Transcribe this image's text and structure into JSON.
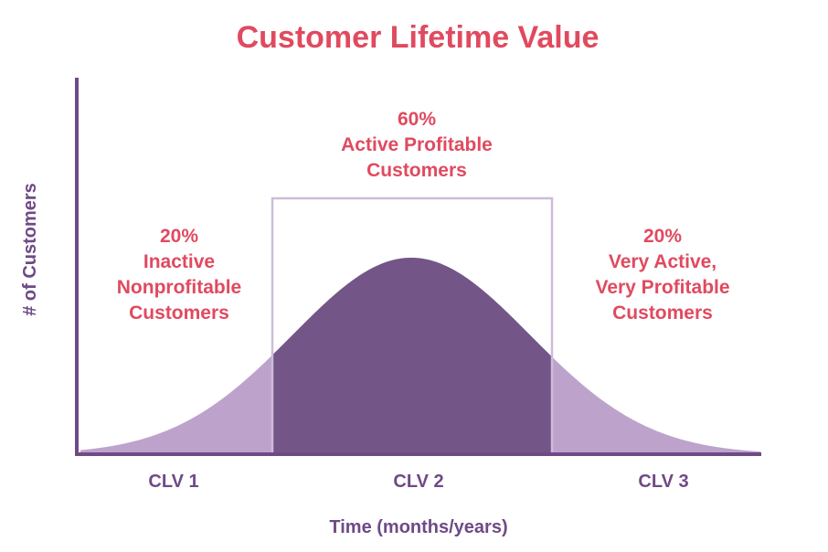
{
  "chart_data": {
    "type": "area",
    "title": "Customer Lifetime Value",
    "xlabel": "Time (months/years)",
    "ylabel": "# of Customers",
    "categories": [
      "CLV 1",
      "CLV 2",
      "CLV 3"
    ],
    "segments": [
      {
        "category": "CLV 1",
        "percent": "20%",
        "lines": [
          "Inactive",
          "Nonprofitable",
          "Customers"
        ]
      },
      {
        "category": "CLV 2",
        "percent": "60%",
        "lines": [
          "Active Profitable",
          "Customers"
        ]
      },
      {
        "category": "CLV 3",
        "percent": "20%",
        "lines": [
          "Very Active,",
          "Very Profitable",
          "Customers"
        ]
      }
    ],
    "distribution": "normal",
    "highlighted_segment": "CLV 2",
    "grid": false
  },
  "colors": {
    "title": "#e04a5f",
    "labels": "#e04a5f",
    "axis": "#6e4a86",
    "curve_main": "#735587",
    "curve_tails": "#bda3cc",
    "box": "#cdbcd9"
  }
}
